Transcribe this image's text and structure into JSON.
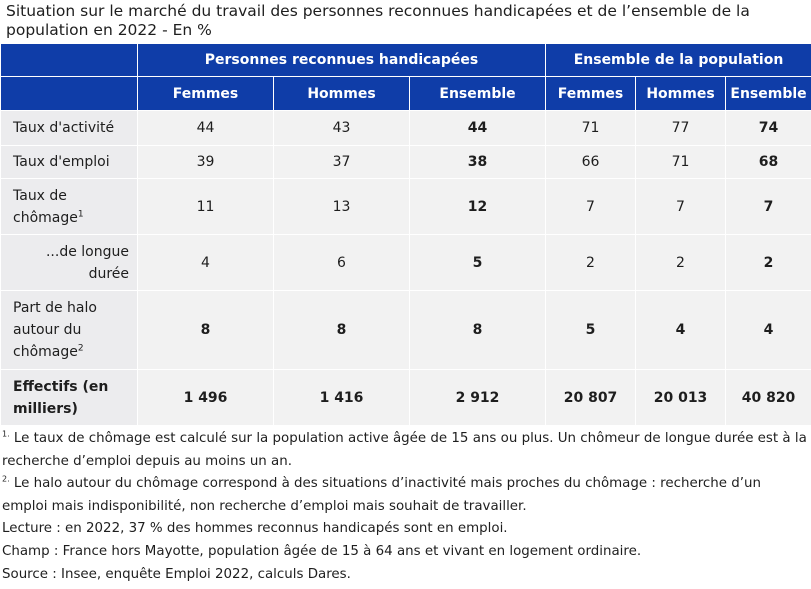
{
  "title": "Situation sur le marché du travail des personnes reconnues handicapées et de l’ensemble de la population en 2022 - En %",
  "table": {
    "group_headers": [
      "Personnes reconnues handicapées",
      "Ensemble de la population"
    ],
    "sub_headers": [
      "Femmes",
      "Hommes",
      "Ensemble",
      "Femmes",
      "Hommes",
      "Ensemble"
    ],
    "rows": [
      {
        "label": "Taux d'activité",
        "sup": "",
        "values": [
          "44",
          "43",
          "44",
          "71",
          "77",
          "74"
        ]
      },
      {
        "label": "Taux d'emploi",
        "sup": "",
        "values": [
          "39",
          "37",
          "38",
          "66",
          "71",
          "68"
        ]
      },
      {
        "label": "Taux de chômage",
        "sup": "1",
        "values": [
          "11",
          "13",
          "12",
          "7",
          "7",
          "7"
        ]
      },
      {
        "label": "...de longue durée",
        "sup": "",
        "values": [
          "4",
          "6",
          "5",
          "2",
          "2",
          "2"
        ]
      },
      {
        "label": "Part de halo autour du chômage",
        "sup": "2",
        "values": [
          "8",
          "8",
          "8",
          "5",
          "4",
          "4"
        ]
      },
      {
        "label": "Effectifs (en milliers)",
        "sup": "",
        "values": [
          "1 496",
          "1 416",
          "2 912",
          "20 807",
          "20 013",
          "40 820"
        ]
      }
    ]
  },
  "notes": {
    "note1_num": "1.",
    "note1": " Le taux de chômage est calculé sur la population active âgée de 15 ans ou plus. Un chômeur de longue durée est à la recherche d’emploi depuis au moins un an.",
    "note2_num": "2.",
    "note2": " Le halo autour du chômage correspond à des situations d’inactivité mais proches du chômage : recherche d’un emploi mais indisponibilité, non recherche d’emploi mais souhait de travailler.",
    "lecture": "Lecture : en 2022, 37 % des hommes reconnus handicapés sont en emploi.",
    "champ": "Champ : France hors Mayotte, population âgée de 15 à 64 ans et vivant en logement ordinaire.",
    "source": "Source : Insee, enquête Emploi 2022, calculs Dares."
  },
  "colors": {
    "header_bg": "#0f3da8",
    "cell_bg": "#f2f2f2"
  }
}
